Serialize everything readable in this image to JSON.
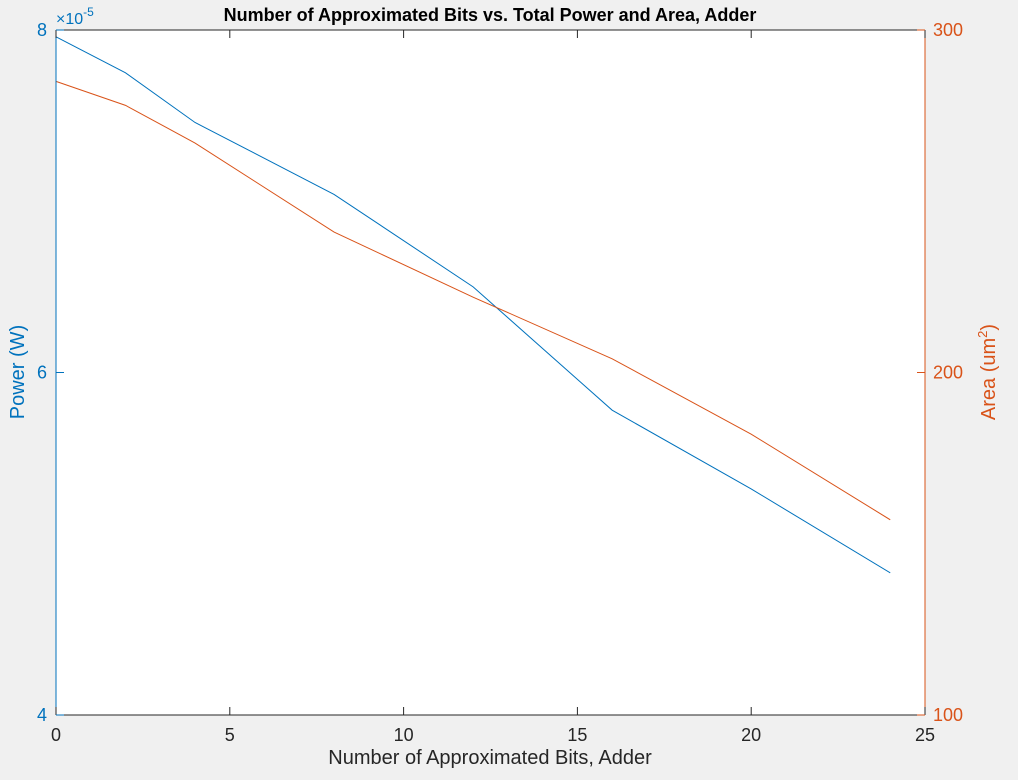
{
  "chart_data": {
    "type": "line",
    "title": "Number of Approximated Bits vs. Total Power and Area, Adder",
    "xlabel": "Number of Approximated Bits, Adder",
    "xlim": [
      0,
      25
    ],
    "xticks": [
      "0",
      "5",
      "10",
      "15",
      "20",
      "25"
    ],
    "left_axis": {
      "ylabel": "Power (W)",
      "ylim": [
        4e-05,
        8e-05
      ],
      "ticks": [
        "4",
        "6",
        "8"
      ],
      "exponent_base": "×10",
      "exponent_power": "-5"
    },
    "right_axis": {
      "ylabel_prefix": "Area (um",
      "ylabel_sup": "2",
      "ylabel_suffix": ")",
      "ylim": [
        100,
        300
      ],
      "ticks": [
        "100",
        "200",
        "300"
      ]
    },
    "grid": false,
    "series": [
      {
        "axis": "left",
        "color": "#0072bd",
        "x": [
          0,
          2,
          4,
          8,
          12,
          16,
          20,
          24
        ],
        "y": [
          7.96e-05,
          7.75e-05,
          7.46e-05,
          7.04e-05,
          6.5e-05,
          5.78e-05,
          5.32e-05,
          4.83e-05
        ]
      },
      {
        "axis": "right",
        "color": "#d95319",
        "x": [
          0,
          2,
          4,
          8,
          12,
          16,
          20,
          24
        ],
        "y": [
          285,
          278,
          267,
          241,
          222,
          204,
          182,
          157
        ]
      }
    ]
  }
}
